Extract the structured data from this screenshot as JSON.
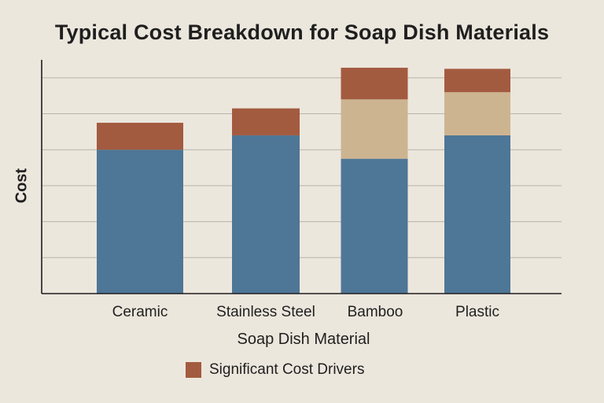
{
  "chart_data": {
    "type": "bar",
    "stacked": true,
    "title": "Typical Cost Breakdown for Soap Dish Materials",
    "xlabel": "Soap Dish Material",
    "ylabel": "Cost",
    "categories": [
      "Ceramic",
      "Stainless Steel",
      "Bamboo",
      "Plastic"
    ],
    "ylim": [
      0,
      6.5
    ],
    "y_ticks_labeled": false,
    "grid": true,
    "series": [
      {
        "values": [
          4.0,
          4.4,
          3.75,
          4.4
        ],
        "color": "#4E7696"
      },
      {
        "values": [
          0,
          0,
          1.65,
          1.2
        ],
        "color": "#CDB491"
      },
      {
        "name": "Significant Cost Drivers",
        "values": [
          0.75,
          0.75,
          0.88,
          0.65
        ],
        "color": "#A35B40"
      }
    ],
    "legend": {
      "position": "bottom",
      "entries": [
        {
          "label": "Significant Cost Drivers",
          "color": "#A35B40"
        }
      ]
    }
  }
}
